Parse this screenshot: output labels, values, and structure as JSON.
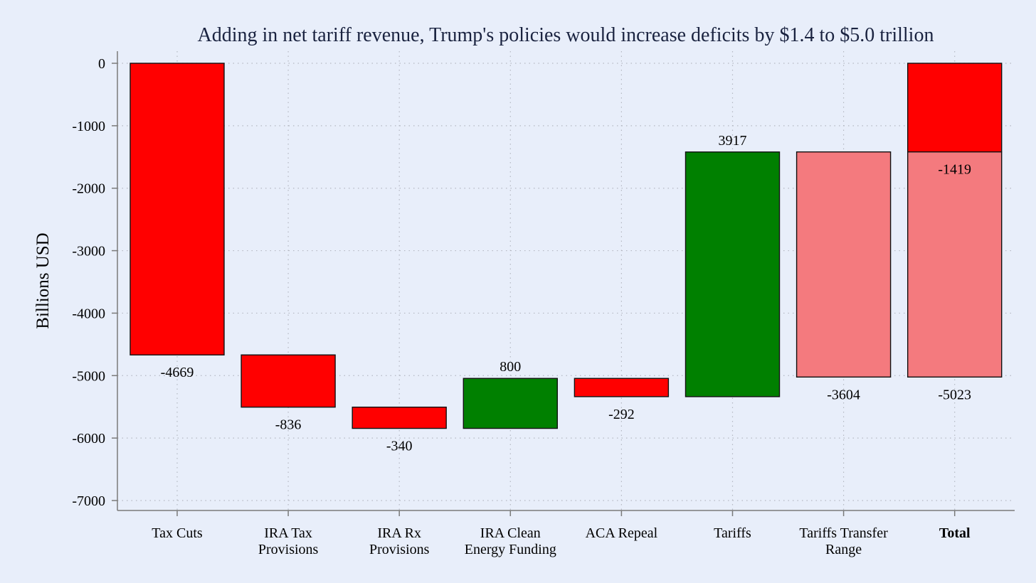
{
  "chart_data": {
    "type": "bar",
    "subtype": "waterfall",
    "title": "Adding in net tariff revenue, Trump's policies would increase deficits by $1.4 to $5.0 trillion",
    "xlabel": "",
    "ylabel": "Billions USD",
    "ylim": [
      -7000,
      0
    ],
    "yticks": [
      0,
      -1000,
      -2000,
      -3000,
      -4000,
      -5000,
      -6000,
      -7000
    ],
    "grid": true,
    "legend": "none",
    "categories": [
      [
        "Tax Cuts"
      ],
      [
        "IRA Tax",
        "Provisions"
      ],
      [
        "IRA Rx",
        "Provisions"
      ],
      [
        "IRA Clean",
        "Energy Funding"
      ],
      [
        "ACA Repeal"
      ],
      [
        "Tariffs"
      ],
      [
        "Tariffs Transfer",
        "Range"
      ],
      [
        "Total"
      ]
    ],
    "bold_categories": [
      "Total"
    ],
    "bars": [
      {
        "category": "Tax Cuts",
        "start": 0,
        "end": -4669,
        "label": "-4669",
        "color": "#ff0000"
      },
      {
        "category": "IRA Tax Provisions",
        "start": -4669,
        "end": -5505,
        "label": "-836",
        "color": "#ff0000"
      },
      {
        "category": "IRA Rx Provisions",
        "start": -5505,
        "end": -5845,
        "label": "-340",
        "color": "#ff0000"
      },
      {
        "category": "IRA Clean Energy Funding",
        "start": -5845,
        "end": -5045,
        "label": "800",
        "color": "#008000"
      },
      {
        "category": "ACA Repeal",
        "start": -5045,
        "end": -5337,
        "label": "-292",
        "color": "#ff0000"
      },
      {
        "category": "Tariffs",
        "start": -5337,
        "end": -1420,
        "label": "3917",
        "color": "#008000"
      },
      {
        "category": "Tariffs Transfer Range",
        "start": -1419,
        "end": -5023,
        "label": "-3604",
        "color": "#f47a7e"
      },
      {
        "category": "Total",
        "start": 0,
        "end": -1419,
        "label": "-1419",
        "color": "#ff0000"
      },
      {
        "category": "Total",
        "start": -1419,
        "end": -5023,
        "label": "-5023",
        "color": "#f47a7e"
      }
    ],
    "colors": {
      "decrease": "#ff0000",
      "increase": "#008000",
      "range": "#f47a7e",
      "background": "#e8eefa",
      "title": "#1a2340"
    }
  }
}
